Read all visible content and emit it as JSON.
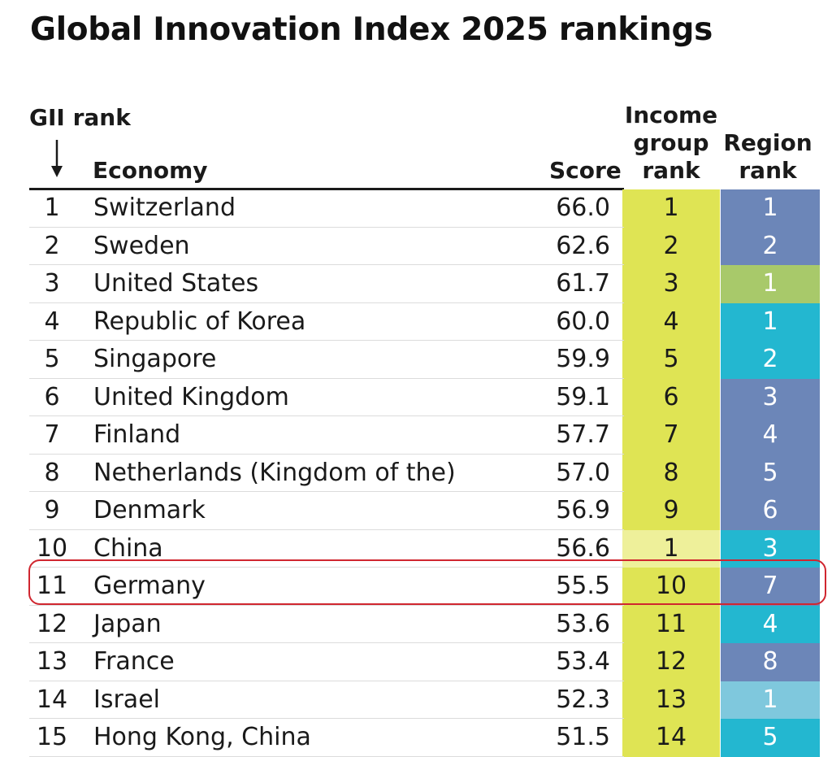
{
  "title": "Global Innovation Index 2025 rankings",
  "headers": {
    "gii_rank": "GII rank",
    "economy": "Economy",
    "score": "Score",
    "income_line1": "Income",
    "income_line2": "group",
    "income_line3": "rank",
    "region_line1": "Region",
    "region_line2": "rank"
  },
  "colors": {
    "income_high": "#dfe454",
    "income_upper_middle": "#eef09a",
    "region_europe": "#6c86b8",
    "region_north_america": "#a8c96a",
    "region_asia": "#23b7d0",
    "region_north_africa_west_asia": "#7fc8dd",
    "highlight": "#d0262f"
  },
  "chart_data": {
    "type": "table",
    "title": "Global Innovation Index 2025 rankings",
    "columns": [
      "GII rank",
      "Economy",
      "Score",
      "Income group rank",
      "Region rank"
    ],
    "highlighted_rank": 11,
    "rows": [
      {
        "rank": "1",
        "economy": "Switzerland",
        "score": "66.0",
        "income_rank": "1",
        "region_rank": "1",
        "income_color": "#dfe454",
        "region_color": "#6c86b8"
      },
      {
        "rank": "2",
        "economy": "Sweden",
        "score": "62.6",
        "income_rank": "2",
        "region_rank": "2",
        "income_color": "#dfe454",
        "region_color": "#6c86b8"
      },
      {
        "rank": "3",
        "economy": "United States",
        "score": "61.7",
        "income_rank": "3",
        "region_rank": "1",
        "income_color": "#dfe454",
        "region_color": "#a8c96a"
      },
      {
        "rank": "4",
        "economy": "Republic of Korea",
        "score": "60.0",
        "income_rank": "4",
        "region_rank": "1",
        "income_color": "#dfe454",
        "region_color": "#23b7d0"
      },
      {
        "rank": "5",
        "economy": "Singapore",
        "score": "59.9",
        "income_rank": "5",
        "region_rank": "2",
        "income_color": "#dfe454",
        "region_color": "#23b7d0"
      },
      {
        "rank": "6",
        "economy": "United Kingdom",
        "score": "59.1",
        "income_rank": "6",
        "region_rank": "3",
        "income_color": "#dfe454",
        "region_color": "#6c86b8"
      },
      {
        "rank": "7",
        "economy": "Finland",
        "score": "57.7",
        "income_rank": "7",
        "region_rank": "4",
        "income_color": "#dfe454",
        "region_color": "#6c86b8"
      },
      {
        "rank": "8",
        "economy": "Netherlands (Kingdom of the)",
        "score": "57.0",
        "income_rank": "8",
        "region_rank": "5",
        "income_color": "#dfe454",
        "region_color": "#6c86b8"
      },
      {
        "rank": "9",
        "economy": "Denmark",
        "score": "56.9",
        "income_rank": "9",
        "region_rank": "6",
        "income_color": "#dfe454",
        "region_color": "#6c86b8"
      },
      {
        "rank": "10",
        "economy": "China",
        "score": "56.6",
        "income_rank": "1",
        "region_rank": "3",
        "income_color": "#eef09a",
        "region_color": "#23b7d0"
      },
      {
        "rank": "11",
        "economy": "Germany",
        "score": "55.5",
        "income_rank": "10",
        "region_rank": "7",
        "income_color": "#dfe454",
        "region_color": "#6c86b8"
      },
      {
        "rank": "12",
        "economy": "Japan",
        "score": "53.6",
        "income_rank": "11",
        "region_rank": "4",
        "income_color": "#dfe454",
        "region_color": "#23b7d0"
      },
      {
        "rank": "13",
        "economy": "France",
        "score": "53.4",
        "income_rank": "12",
        "region_rank": "8",
        "income_color": "#dfe454",
        "region_color": "#6c86b8"
      },
      {
        "rank": "14",
        "economy": "Israel",
        "score": "52.3",
        "income_rank": "13",
        "region_rank": "1",
        "income_color": "#dfe454",
        "region_color": "#7fc8dd"
      },
      {
        "rank": "15",
        "economy": "Hong Kong, China",
        "score": "51.5",
        "income_rank": "14",
        "region_rank": "5",
        "income_color": "#dfe454",
        "region_color": "#23b7d0"
      }
    ]
  }
}
